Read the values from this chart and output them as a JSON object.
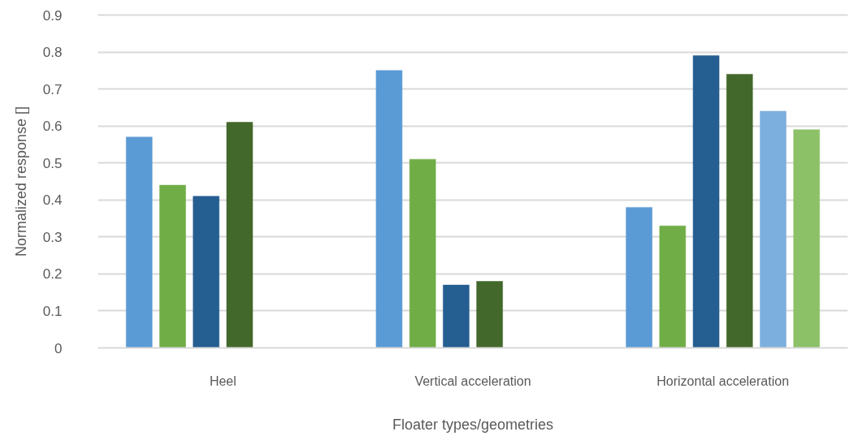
{
  "chart_data": {
    "type": "bar",
    "categories": [
      "Heel",
      "Vertical acceleration",
      "Horizontal acceleration"
    ],
    "series": [
      {
        "color": "#5b9bd5",
        "values": [
          0.57,
          0.75,
          0.38
        ]
      },
      {
        "color": "#70ad47",
        "values": [
          0.44,
          0.51,
          0.33
        ]
      },
      {
        "color": "#255e91",
        "values": [
          0.41,
          0.17,
          0.79
        ]
      },
      {
        "color": "#43682b",
        "values": [
          0.61,
          0.18,
          0.74
        ]
      },
      {
        "color": "#7cafdd",
        "values": [
          null,
          null,
          0.64
        ]
      },
      {
        "color": "#8cc168",
        "values": [
          null,
          null,
          0.59
        ]
      }
    ],
    "xlabel": "Floater types/geometries",
    "ylabel": "Normalized response []",
    "ylim": [
      0,
      0.9
    ],
    "yticks": [
      0,
      0.1,
      0.2,
      0.3,
      0.4,
      0.5,
      0.6,
      0.7,
      0.8,
      0.9
    ],
    "grid": "y"
  }
}
